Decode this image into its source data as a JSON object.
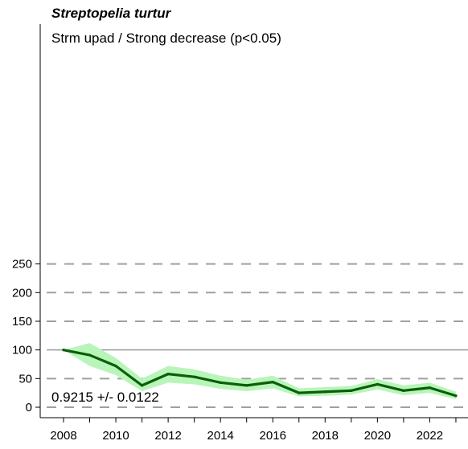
{
  "chart_data": {
    "type": "line",
    "title": "Streptopelia turtur",
    "subtitle": "Strm upad / Strong decrease (p<0.05)",
    "annotation": "0.9215 +/- 0.0122",
    "x": [
      2008,
      2009,
      2010,
      2011,
      2012,
      2013,
      2014,
      2015,
      2016,
      2017,
      2018,
      2019,
      2020,
      2021,
      2022,
      2023
    ],
    "series": [
      {
        "values": [
          100,
          91,
          72,
          38,
          58,
          53,
          43,
          38,
          44,
          25,
          27,
          29,
          40,
          29,
          34,
          20
        ],
        "lower": [
          100,
          72,
          56,
          28,
          43,
          40,
          32,
          28,
          33,
          19,
          20,
          22,
          31,
          21,
          25,
          14
        ],
        "upper": [
          100,
          112,
          86,
          50,
          72,
          66,
          55,
          48,
          55,
          33,
          35,
          37,
          49,
          38,
          43,
          27
        ]
      }
    ],
    "xticks": [
      "2008",
      "2010",
      "2012",
      "2014",
      "2016",
      "2018",
      "2020",
      "2022"
    ],
    "yticks": [
      "0",
      "50",
      "100",
      "150",
      "200",
      "250"
    ],
    "ylim": [
      -5,
      260
    ],
    "xlim": [
      2007.6,
      2023.9
    ],
    "reference_line": 100,
    "grid": "dashed horizontal",
    "colors": {
      "line": "#0b5e0b",
      "band": "#b8f5b8",
      "grid": "#a0a0a0"
    }
  }
}
